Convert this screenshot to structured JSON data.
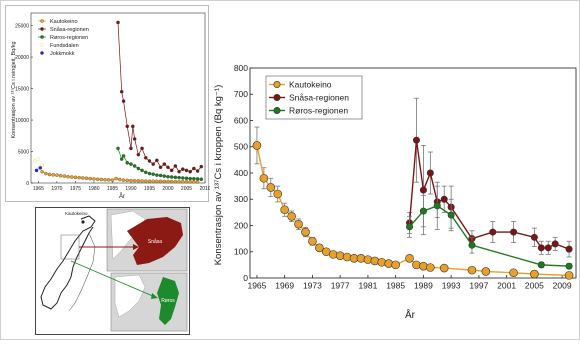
{
  "colors": {
    "kautokeino": "#E8A02A",
    "snasa": "#7B1414",
    "roros": "#1E7A1E",
    "fundsdalen": "#E6D21A",
    "jokkmokk": "#1A2AD6",
    "map_snasa": "#8B1A14",
    "map_roros": "#1E8A2E"
  },
  "chart_data": [
    {
      "type": "scatter",
      "xlabel": "År",
      "ylabel": "Konsentrasjon av ¹³⁷Cs i reingjeit, Bq/kg",
      "xlim": [
        1963,
        2010
      ],
      "ylim": [
        0,
        27000
      ],
      "x_ticks": [
        "1965",
        "1970",
        "1975",
        "1980",
        "1985",
        "1990",
        "1995",
        "2000",
        "2005",
        "2010"
      ],
      "y_ticks": [
        "0",
        "5000",
        "10000",
        "15000",
        "20000",
        "25000"
      ],
      "legend_position": "top-left",
      "grid": false,
      "series": [
        {
          "name": "Kautokeino",
          "key": "kautokeino",
          "line": true,
          "x": [
            1966,
            1967,
            1968,
            1969,
            1970,
            1971,
            1972,
            1973,
            1974,
            1975,
            1976,
            1977,
            1978,
            1979,
            1980,
            1981,
            1982,
            1983,
            1984,
            1985,
            1986,
            1987,
            1988,
            1989,
            1990,
            1991,
            1992,
            1993,
            1994,
            1995,
            1996,
            1997,
            1998,
            1999,
            2000,
            2001,
            2002,
            2003,
            2004,
            2005,
            2006,
            2007,
            2008
          ],
          "y": [
            1800,
            1500,
            1350,
            1300,
            1250,
            1150,
            1100,
            1000,
            950,
            900,
            850,
            800,
            750,
            700,
            650,
            600,
            560,
            520,
            500,
            460,
            700,
            550,
            450,
            420,
            380,
            360,
            340,
            320,
            300,
            290,
            280,
            270,
            260,
            250,
            240,
            230,
            220,
            210,
            200,
            190,
            185,
            180,
            170
          ]
        },
        {
          "name": "Snåsa-regionen",
          "key": "snasa",
          "line": true,
          "x": [
            1986.5,
            1987.5,
            1988,
            1989,
            1990,
            1990.5,
            1991,
            1992,
            1993,
            1994,
            1995,
            1996,
            1997,
            1998,
            1999,
            2000,
            2001,
            2002,
            2003,
            2004,
            2005,
            2006,
            2007,
            2008,
            2009
          ],
          "y": [
            25500,
            14500,
            13000,
            9000,
            5500,
            9000,
            7000,
            4500,
            5500,
            4000,
            3500,
            3000,
            3600,
            2500,
            3000,
            2500,
            2000,
            2700,
            1800,
            2200,
            2000,
            1800,
            2300,
            1900,
            2600
          ]
        },
        {
          "name": "Røros-regionen",
          "key": "roros",
          "line": true,
          "x": [
            1986.5,
            1987.5,
            1988,
            1989,
            1990,
            1991,
            1992,
            1993,
            1994,
            1995,
            1996,
            1997,
            1998,
            1999,
            2000,
            2001,
            2002,
            2003,
            2004,
            2005,
            2006,
            2007,
            2008,
            2009
          ],
          "y": [
            5500,
            3800,
            4300,
            3200,
            3000,
            2700,
            2300,
            2000,
            1700,
            1500,
            1400,
            1250,
            1200,
            1100,
            1000,
            950,
            900,
            850,
            800,
            750,
            700,
            680,
            650,
            600
          ]
        },
        {
          "name": "Fundsdalen",
          "key": "fundsdalen",
          "line": false,
          "x": [
            1964,
            1965,
            1966
          ],
          "y": [
            3500,
            3800,
            2800
          ]
        },
        {
          "name": "Jokkmokk",
          "key": "jokkmokk",
          "line": false,
          "x": [
            1964.5,
            1965.5
          ],
          "y": [
            2000,
            2400
          ]
        }
      ]
    },
    {
      "type": "line",
      "xlabel": "År",
      "ylabel": "Konsentrasjon av ¹³⁷Cs i kroppen (Bq kg⁻¹)",
      "xlim": [
        1964,
        2011
      ],
      "ylim": [
        0,
        800
      ],
      "x_ticks": [
        "1965",
        "1969",
        "1973",
        "1977",
        "1981",
        "1985",
        "1989",
        "1993",
        "1997",
        "2001",
        "2005",
        "2009"
      ],
      "y_ticks": [
        "0",
        "100",
        "200",
        "300",
        "400",
        "500",
        "600",
        "700",
        "800"
      ],
      "legend_position": "top-left",
      "grid": false,
      "series": [
        {
          "name": "Kautokeino",
          "key": "kautokeino",
          "big": true,
          "x": [
            1965,
            1966,
            1967,
            1968,
            1969,
            1970,
            1971,
            1972,
            1973,
            1974,
            1975,
            1976,
            1977,
            1978,
            1979,
            1980,
            1981,
            1982,
            1983,
            1984,
            1985,
            1987,
            1988,
            1989,
            1990,
            1992,
            1996,
            1998,
            2002,
            2005,
            2010
          ],
          "y": [
            505,
            380,
            345,
            320,
            260,
            235,
            205,
            175,
            140,
            115,
            100,
            90,
            85,
            80,
            75,
            75,
            70,
            65,
            60,
            55,
            50,
            75,
            50,
            45,
            40,
            38,
            30,
            25,
            20,
            15,
            10
          ],
          "err": [
            70,
            40,
            35,
            30,
            25,
            20,
            20,
            18,
            15,
            12,
            10,
            10,
            8,
            8,
            8,
            8,
            8,
            8,
            6,
            6,
            6,
            8,
            6,
            5,
            5,
            5,
            5,
            4,
            4,
            4,
            3
          ]
        },
        {
          "name": "Snåsa-regionen",
          "key": "snasa",
          "x": [
            1987,
            1988,
            1989,
            1990,
            1991,
            1992,
            1993,
            1996,
            1999,
            2002,
            2005,
            2006,
            2007,
            2008,
            2010
          ],
          "y": [
            210,
            525,
            335,
            400,
            290,
            300,
            270,
            150,
            175,
            175,
            155,
            115,
            115,
            130,
            110
          ],
          "err": [
            40,
            160,
            170,
            80,
            60,
            50,
            80,
            30,
            40,
            40,
            35,
            25,
            25,
            25,
            30
          ]
        },
        {
          "name": "Røros-regionen",
          "key": "roros",
          "x": [
            1987,
            1989,
            1991,
            1993,
            1996,
            2006,
            2010
          ],
          "y": [
            195,
            255,
            275,
            240,
            125,
            50,
            45
          ],
          "err": [
            40,
            60,
            90,
            60,
            30,
            10,
            10
          ]
        }
      ]
    }
  ],
  "map": {
    "label_kautokeino": "Kautokeino",
    "label_snasa": "Snåsa",
    "label_roros": "Røros"
  }
}
